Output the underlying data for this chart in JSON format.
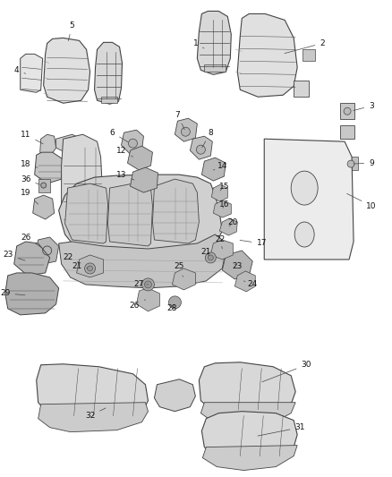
{
  "background_color": "#ffffff",
  "line_color": "#444444",
  "text_color": "#111111",
  "label_fontsize": 6.5,
  "fig_w": 4.38,
  "fig_h": 5.33,
  "dpi": 100
}
